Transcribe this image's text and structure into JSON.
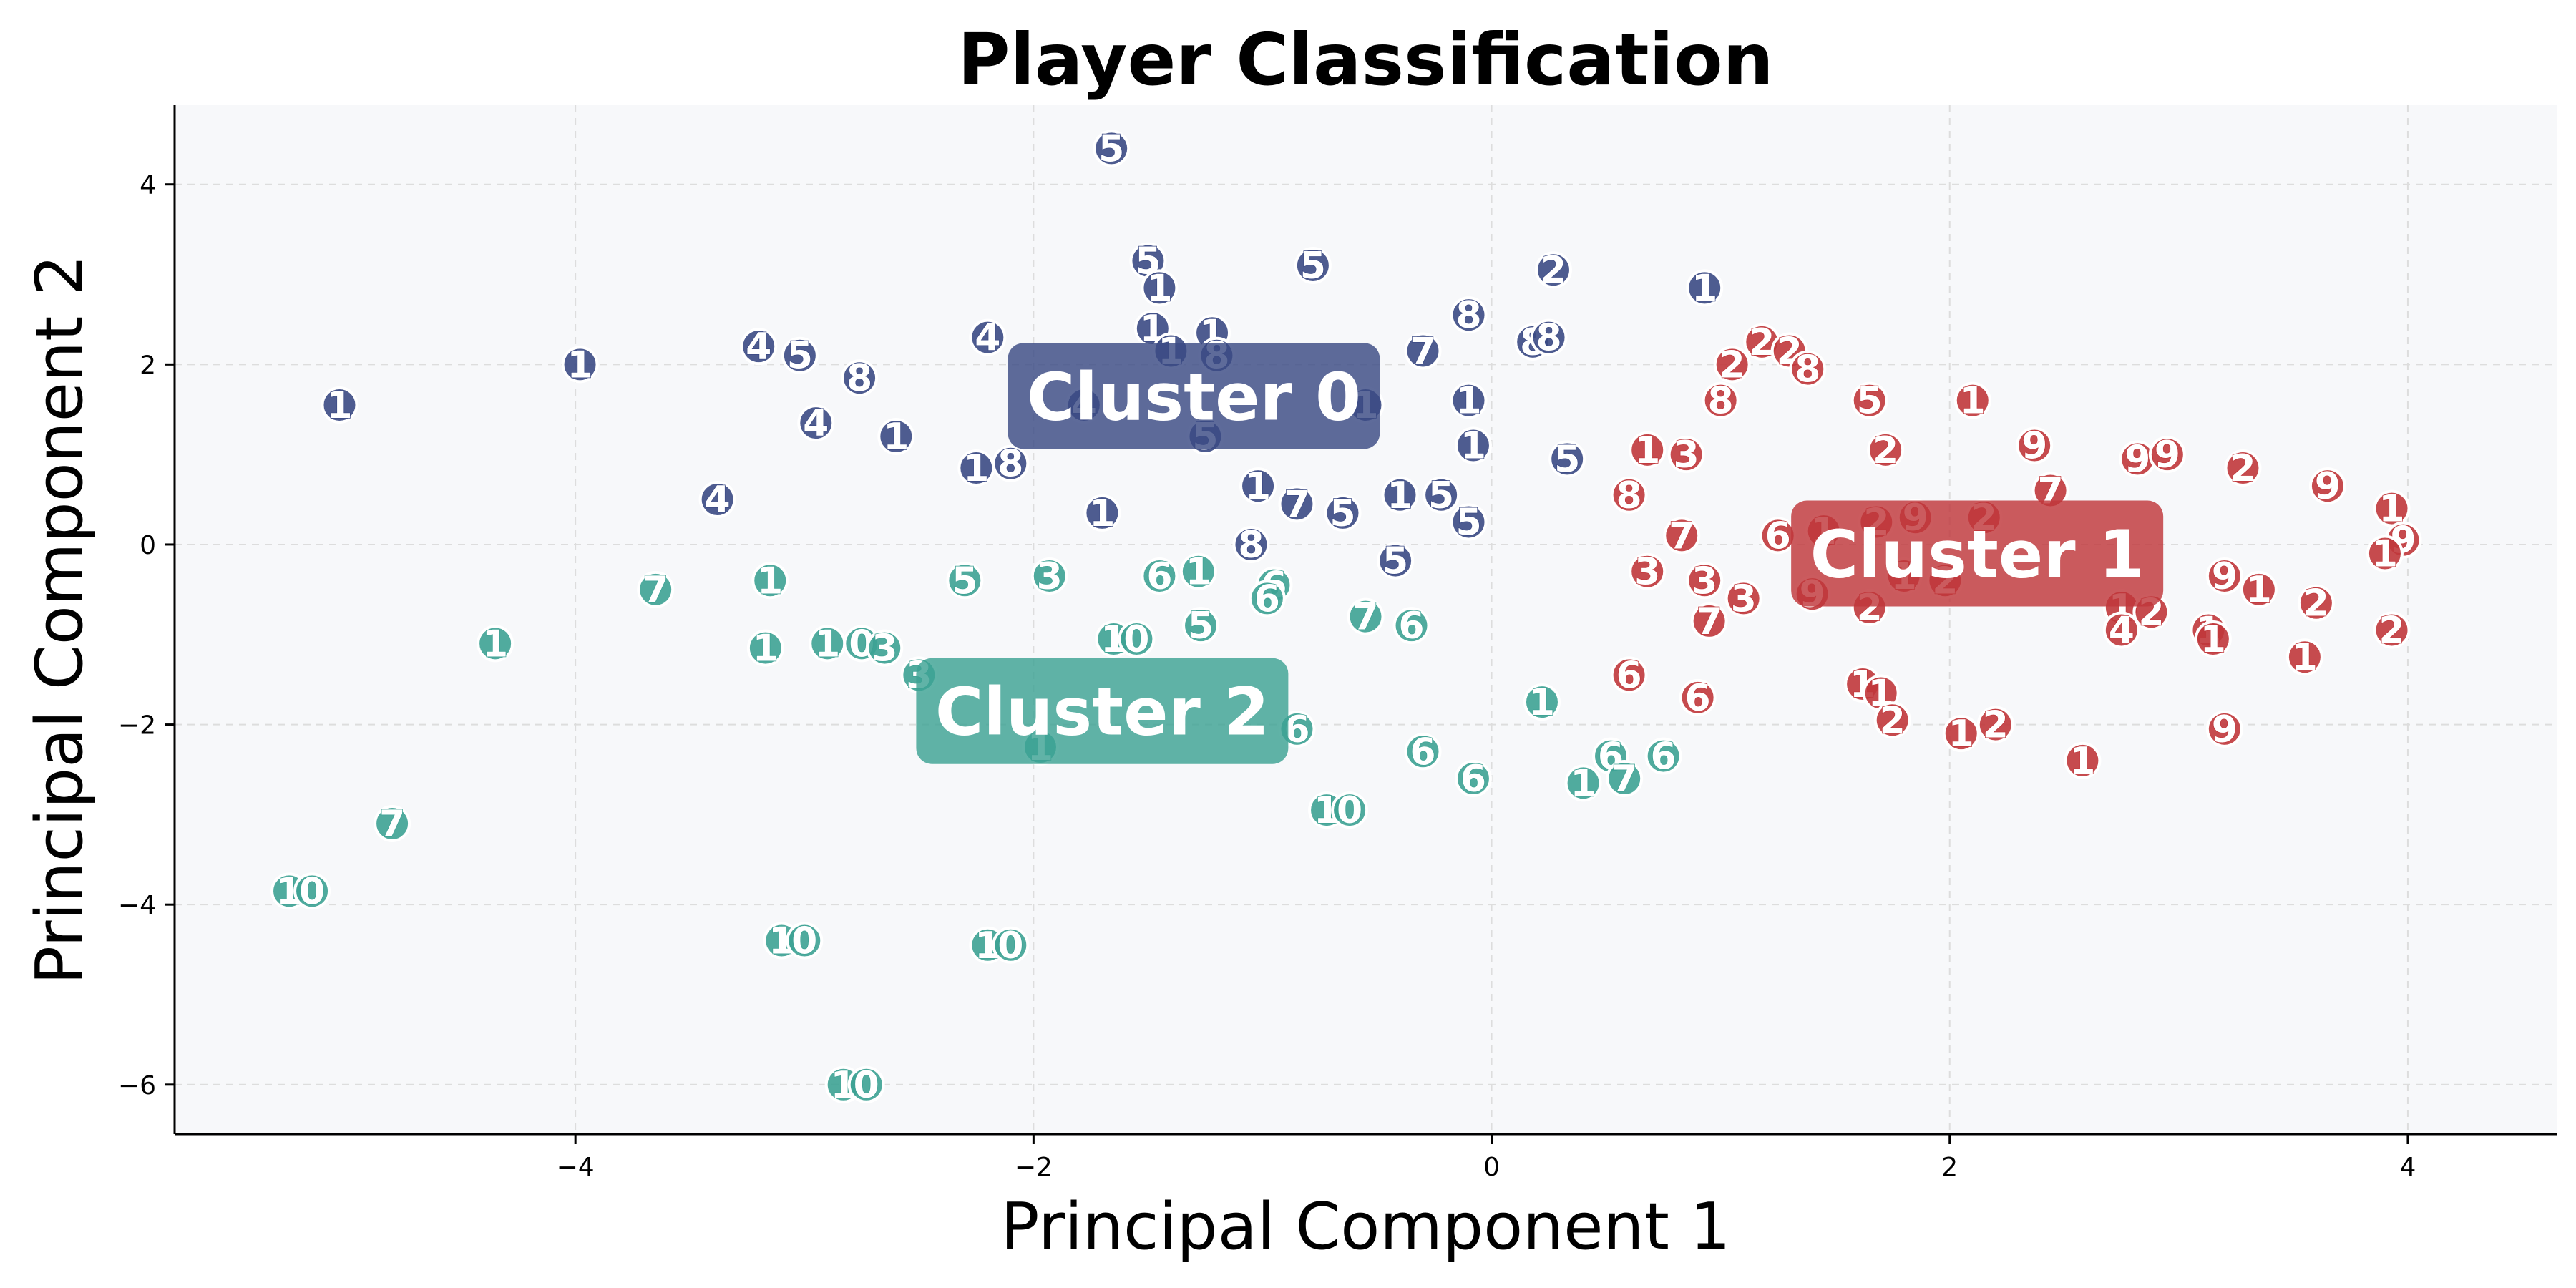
{
  "chart_data": {
    "type": "scatter",
    "title": "Player Classification",
    "xlabel": "Principal Component 1",
    "ylabel": "Principal Component 2",
    "xlim": [
      -5.75,
      4.65
    ],
    "ylim": [
      -6.55,
      4.88
    ],
    "xticks": [
      -4,
      -2,
      0,
      2,
      4
    ],
    "yticks": [
      -6,
      -4,
      -2,
      0,
      2,
      4
    ],
    "grid": true,
    "colors": {
      "background": "#f7f8fa",
      "grid": "#dddddd",
      "cluster_0": "#3b4a84",
      "cluster_1": "#c0373b",
      "cluster_2": "#3da294"
    },
    "series": [
      {
        "cluster": "cluster_0",
        "annotation": "Cluster 0",
        "annotation_pos": [
          -1.3,
          1.65
        ],
        "points": [
          {
            "x": -1.66,
            "y": 4.4,
            "label": "5"
          },
          {
            "x": -1.5,
            "y": 3.15,
            "label": "5"
          },
          {
            "x": -0.78,
            "y": 3.1,
            "label": "5"
          },
          {
            "x": -1.45,
            "y": 2.85,
            "label": "1"
          },
          {
            "x": -1.48,
            "y": 2.4,
            "label": "1"
          },
          {
            "x": -1.22,
            "y": 2.35,
            "label": "1"
          },
          {
            "x": -1.4,
            "y": 2.15,
            "label": "1"
          },
          {
            "x": -1.2,
            "y": 2.1,
            "label": "8"
          },
          {
            "x": 0.27,
            "y": 3.05,
            "label": "2"
          },
          {
            "x": 0.93,
            "y": 2.85,
            "label": "1"
          },
          {
            "x": -0.1,
            "y": 2.55,
            "label": "8"
          },
          {
            "x": 0.18,
            "y": 2.25,
            "label": "8"
          },
          {
            "x": 0.25,
            "y": 2.3,
            "label": "8"
          },
          {
            "x": -0.3,
            "y": 2.15,
            "label": "7"
          },
          {
            "x": -3.98,
            "y": 2.0,
            "label": "1"
          },
          {
            "x": -3.2,
            "y": 2.2,
            "label": "4"
          },
          {
            "x": -3.02,
            "y": 2.1,
            "label": "5"
          },
          {
            "x": -2.76,
            "y": 1.85,
            "label": "8"
          },
          {
            "x": -2.2,
            "y": 2.3,
            "label": "4"
          },
          {
            "x": -5.03,
            "y": 1.55,
            "label": "1"
          },
          {
            "x": -2.95,
            "y": 1.35,
            "label": "4"
          },
          {
            "x": -2.6,
            "y": 1.2,
            "label": "1"
          },
          {
            "x": -1.78,
            "y": 1.55,
            "label": "4"
          },
          {
            "x": -1.25,
            "y": 1.2,
            "label": "5"
          },
          {
            "x": -0.55,
            "y": 1.55,
            "label": "1"
          },
          {
            "x": -0.1,
            "y": 1.6,
            "label": "1"
          },
          {
            "x": -0.08,
            "y": 1.1,
            "label": "1"
          },
          {
            "x": 0.33,
            "y": 0.95,
            "label": "5"
          },
          {
            "x": -2.25,
            "y": 0.85,
            "label": "1"
          },
          {
            "x": -2.1,
            "y": 0.9,
            "label": "8"
          },
          {
            "x": -3.38,
            "y": 0.5,
            "label": "4"
          },
          {
            "x": -1.02,
            "y": 0.65,
            "label": "1"
          },
          {
            "x": -0.85,
            "y": 0.45,
            "label": "7"
          },
          {
            "x": -0.65,
            "y": 0.35,
            "label": "5"
          },
          {
            "x": -1.7,
            "y": 0.35,
            "label": "1"
          },
          {
            "x": -0.4,
            "y": 0.55,
            "label": "1"
          },
          {
            "x": -0.22,
            "y": 0.55,
            "label": "5"
          },
          {
            "x": -0.1,
            "y": 0.25,
            "label": "5"
          },
          {
            "x": -1.05,
            "y": 0.0,
            "label": "8"
          },
          {
            "x": -0.42,
            "y": -0.18,
            "label": "5"
          }
        ]
      },
      {
        "cluster": "cluster_1",
        "annotation": "Cluster 1",
        "annotation_pos": [
          2.12,
          -0.1
        ],
        "points": [
          {
            "x": 1.05,
            "y": 2.0,
            "label": "2"
          },
          {
            "x": 1.18,
            "y": 2.25,
            "label": "2"
          },
          {
            "x": 1.3,
            "y": 2.15,
            "label": "2"
          },
          {
            "x": 1.38,
            "y": 1.95,
            "label": "8"
          },
          {
            "x": 1.0,
            "y": 1.6,
            "label": "8"
          },
          {
            "x": 1.65,
            "y": 1.6,
            "label": "5"
          },
          {
            "x": 2.1,
            "y": 1.6,
            "label": "1"
          },
          {
            "x": 1.72,
            "y": 1.05,
            "label": "2"
          },
          {
            "x": 2.37,
            "y": 1.1,
            "label": "9"
          },
          {
            "x": 2.82,
            "y": 0.95,
            "label": "9"
          },
          {
            "x": 2.95,
            "y": 1.0,
            "label": "9"
          },
          {
            "x": 3.28,
            "y": 0.85,
            "label": "2"
          },
          {
            "x": 3.65,
            "y": 0.65,
            "label": "9"
          },
          {
            "x": 3.93,
            "y": 0.4,
            "label": "1"
          },
          {
            "x": 3.98,
            "y": 0.05,
            "label": "9"
          },
          {
            "x": 3.9,
            "y": -0.1,
            "label": "1"
          },
          {
            "x": 0.68,
            "y": 1.05,
            "label": "1"
          },
          {
            "x": 0.85,
            "y": 1.0,
            "label": "3"
          },
          {
            "x": 0.6,
            "y": 0.55,
            "label": "8"
          },
          {
            "x": 0.83,
            "y": 0.1,
            "label": "7"
          },
          {
            "x": 1.25,
            "y": 0.1,
            "label": "6"
          },
          {
            "x": 1.68,
            "y": 0.25,
            "label": "2"
          },
          {
            "x": 1.85,
            "y": 0.3,
            "label": "9"
          },
          {
            "x": 2.15,
            "y": 0.3,
            "label": "2"
          },
          {
            "x": 2.44,
            "y": 0.6,
            "label": "7"
          },
          {
            "x": 1.45,
            "y": 0.15,
            "label": "1"
          },
          {
            "x": 0.68,
            "y": -0.3,
            "label": "3"
          },
          {
            "x": 0.93,
            "y": -0.4,
            "label": "3"
          },
          {
            "x": 0.95,
            "y": -0.85,
            "label": "7"
          },
          {
            "x": 1.1,
            "y": -0.6,
            "label": "3"
          },
          {
            "x": 1.4,
            "y": -0.55,
            "label": "9"
          },
          {
            "x": 1.65,
            "y": -0.7,
            "label": "2"
          },
          {
            "x": 1.8,
            "y": -0.35,
            "label": "1"
          },
          {
            "x": 1.98,
            "y": -0.4,
            "label": "2"
          },
          {
            "x": 2.75,
            "y": -0.7,
            "label": "1"
          },
          {
            "x": 2.88,
            "y": -0.75,
            "label": "2"
          },
          {
            "x": 2.75,
            "y": -0.95,
            "label": "4"
          },
          {
            "x": 3.13,
            "y": -0.95,
            "label": "1"
          },
          {
            "x": 3.15,
            "y": -1.05,
            "label": "1"
          },
          {
            "x": 3.35,
            "y": -0.5,
            "label": "1"
          },
          {
            "x": 3.2,
            "y": -0.35,
            "label": "9"
          },
          {
            "x": 3.6,
            "y": -0.65,
            "label": "2"
          },
          {
            "x": 3.93,
            "y": -0.95,
            "label": "2"
          },
          {
            "x": 3.55,
            "y": -1.25,
            "label": "1"
          },
          {
            "x": 0.6,
            "y": -1.45,
            "label": "6"
          },
          {
            "x": 0.9,
            "y": -1.7,
            "label": "6"
          },
          {
            "x": 1.62,
            "y": -1.55,
            "label": "1"
          },
          {
            "x": 1.7,
            "y": -1.65,
            "label": "1"
          },
          {
            "x": 1.75,
            "y": -1.95,
            "label": "2"
          },
          {
            "x": 2.05,
            "y": -2.1,
            "label": "1"
          },
          {
            "x": 2.2,
            "y": -2.0,
            "label": "2"
          },
          {
            "x": 2.58,
            "y": -2.4,
            "label": "1"
          },
          {
            "x": 3.2,
            "y": -2.05,
            "label": "9"
          }
        ]
      },
      {
        "cluster": "cluster_2",
        "annotation": "Cluster 2",
        "annotation_pos": [
          -1.7,
          -1.85
        ],
        "points": [
          {
            "x": -3.65,
            "y": -0.5,
            "label": "7"
          },
          {
            "x": -3.15,
            "y": -0.4,
            "label": "1"
          },
          {
            "x": -2.3,
            "y": -0.4,
            "label": "5"
          },
          {
            "x": -1.93,
            "y": -0.35,
            "label": "3"
          },
          {
            "x": -1.45,
            "y": -0.35,
            "label": "6"
          },
          {
            "x": -1.28,
            "y": -0.3,
            "label": "1"
          },
          {
            "x": -0.95,
            "y": -0.45,
            "label": "6"
          },
          {
            "x": -0.98,
            "y": -0.6,
            "label": "6"
          },
          {
            "x": -1.27,
            "y": -0.9,
            "label": "5"
          },
          {
            "x": -0.55,
            "y": -0.8,
            "label": "7"
          },
          {
            "x": -0.35,
            "y": -0.9,
            "label": "6"
          },
          {
            "x": -4.35,
            "y": -1.1,
            "label": "1"
          },
          {
            "x": -3.17,
            "y": -1.15,
            "label": "1"
          },
          {
            "x": -2.9,
            "y": -1.1,
            "label": "1"
          },
          {
            "x": -2.75,
            "y": -1.1,
            "label": "0"
          },
          {
            "x": -2.65,
            "y": -1.15,
            "label": "3"
          },
          {
            "x": -2.5,
            "y": -1.45,
            "label": "3"
          },
          {
            "x": -1.65,
            "y": -1.05,
            "label": "1"
          },
          {
            "x": -1.55,
            "y": -1.05,
            "label": "0"
          },
          {
            "x": -1.97,
            "y": -2.25,
            "label": "1"
          },
          {
            "x": 0.22,
            "y": -1.75,
            "label": "1"
          },
          {
            "x": -0.85,
            "y": -2.05,
            "label": "6"
          },
          {
            "x": -0.3,
            "y": -2.3,
            "label": "6"
          },
          {
            "x": -0.08,
            "y": -2.6,
            "label": "6"
          },
          {
            "x": 0.4,
            "y": -2.65,
            "label": "1"
          },
          {
            "x": 0.52,
            "y": -2.35,
            "label": "6"
          },
          {
            "x": 0.58,
            "y": -2.6,
            "label": "7"
          },
          {
            "x": 0.75,
            "y": -2.35,
            "label": "6"
          },
          {
            "x": -0.72,
            "y": -2.95,
            "label": "1"
          },
          {
            "x": -0.62,
            "y": -2.95,
            "label": "0"
          },
          {
            "x": -4.8,
            "y": -3.1,
            "label": "7"
          },
          {
            "x": -5.25,
            "y": -3.85,
            "label": "1"
          },
          {
            "x": -5.15,
            "y": -3.85,
            "label": "0"
          },
          {
            "x": -3.1,
            "y": -4.4,
            "label": "1"
          },
          {
            "x": -3.0,
            "y": -4.4,
            "label": "0"
          },
          {
            "x": -2.2,
            "y": -4.45,
            "label": "1"
          },
          {
            "x": -2.1,
            "y": -4.45,
            "label": "0"
          },
          {
            "x": -2.83,
            "y": -6.0,
            "label": "1"
          },
          {
            "x": -2.73,
            "y": -6.0,
            "label": "0"
          }
        ]
      }
    ]
  }
}
